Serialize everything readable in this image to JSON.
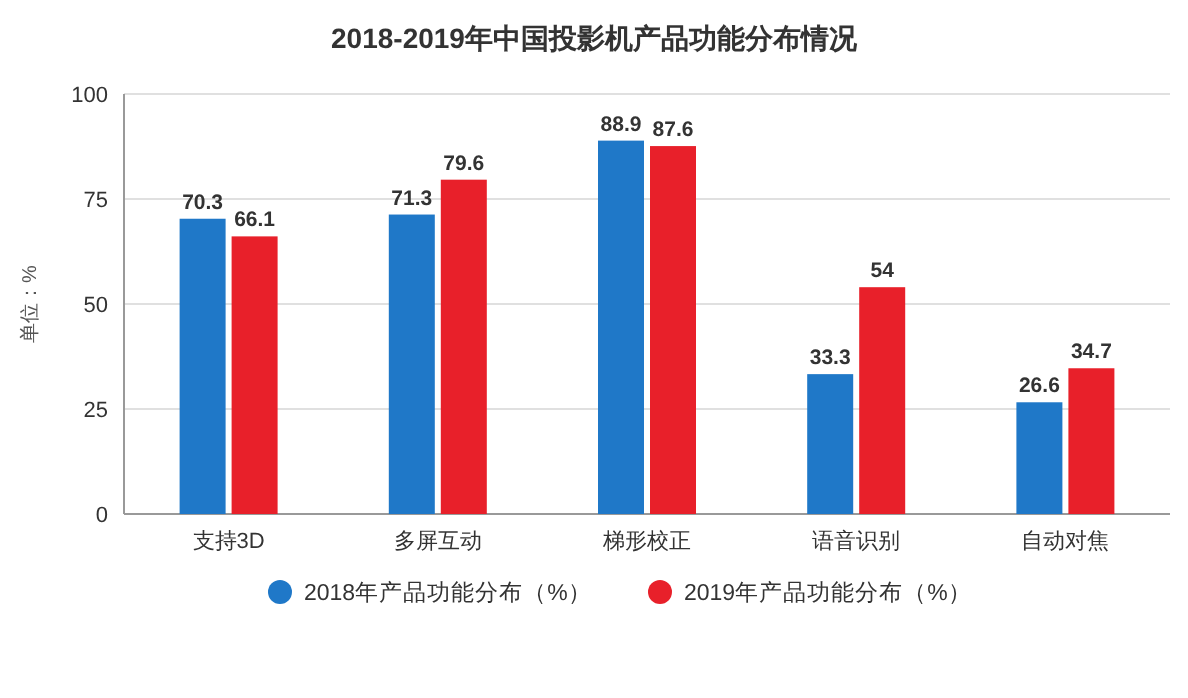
{
  "chart_data": {
    "type": "bar",
    "title": "2018-2019年中国投影机产品功能分布情况",
    "ylabel": "单位：%",
    "categories": [
      "支持3D",
      "多屏互动",
      "梯形校正",
      "语音识别",
      "自动对焦"
    ],
    "series": [
      {
        "name": "2018年产品功能分布（%）",
        "color": "#1f78c8",
        "values": [
          70.3,
          71.3,
          88.9,
          33.3,
          26.6
        ]
      },
      {
        "name": "2019年产品功能分布（%）",
        "color": "#e8202a",
        "values": [
          66.1,
          79.6,
          87.6,
          54,
          34.7
        ]
      }
    ],
    "ylim": [
      0,
      100
    ],
    "yticks": [
      0,
      25,
      50,
      75,
      100
    ],
    "grid": "y",
    "legend": "bottom",
    "data_labels": true
  }
}
